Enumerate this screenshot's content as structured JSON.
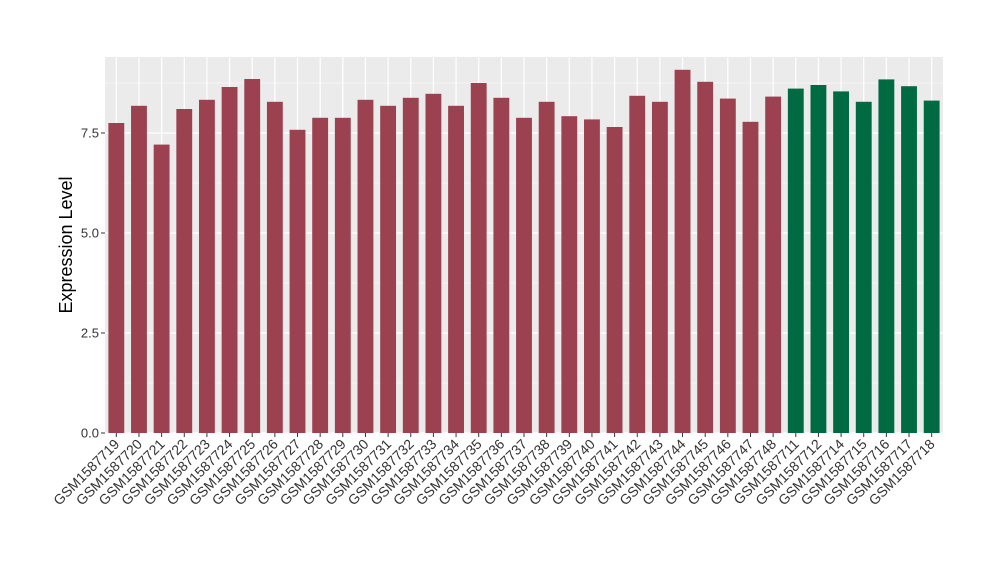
{
  "chart_data": {
    "type": "bar",
    "title": "",
    "xlabel": "",
    "ylabel": "Expression Level",
    "ylim": [
      0,
      9.4
    ],
    "yticks": [
      0.0,
      2.5,
      5.0,
      7.5
    ],
    "ytick_labels": [
      "0.0",
      "2.5",
      "5.0",
      "7.5"
    ],
    "grid": true,
    "legend": "none",
    "categories": [
      "GSM1587719",
      "GSM1587720",
      "GSM1587721",
      "GSM1587722",
      "GSM1587723",
      "GSM1587724",
      "GSM1587725",
      "GSM1587726",
      "GSM1587727",
      "GSM1587728",
      "GSM1587729",
      "GSM1587730",
      "GSM1587731",
      "GSM1587732",
      "GSM1587733",
      "GSM1587734",
      "GSM1587735",
      "GSM1587736",
      "GSM1587737",
      "GSM1587738",
      "GSM1587739",
      "GSM1587740",
      "GSM1587741",
      "GSM1587742",
      "GSM1587743",
      "GSM1587744",
      "GSM1587745",
      "GSM1587746",
      "GSM1587747",
      "GSM1587748",
      "GSM1587711",
      "GSM1587712",
      "GSM1587714",
      "GSM1587715",
      "GSM1587716",
      "GSM1587717",
      "GSM1587718"
    ],
    "values": [
      7.75,
      8.18,
      7.21,
      8.1,
      8.33,
      8.65,
      8.85,
      8.28,
      7.58,
      7.88,
      7.88,
      8.33,
      8.18,
      8.38,
      8.48,
      8.18,
      8.75,
      8.38,
      7.88,
      8.28,
      7.92,
      7.84,
      7.65,
      8.43,
      8.28,
      9.08,
      8.78,
      8.36,
      7.78,
      8.41,
      8.61,
      8.7,
      8.54,
      8.28,
      8.84,
      8.67,
      8.31
    ],
    "group_colors": [
      "#9b4150",
      "#9b4150",
      "#9b4150",
      "#9b4150",
      "#9b4150",
      "#9b4150",
      "#9b4150",
      "#9b4150",
      "#9b4150",
      "#9b4150",
      "#9b4150",
      "#9b4150",
      "#9b4150",
      "#9b4150",
      "#9b4150",
      "#9b4150",
      "#9b4150",
      "#9b4150",
      "#9b4150",
      "#9b4150",
      "#9b4150",
      "#9b4150",
      "#9b4150",
      "#9b4150",
      "#9b4150",
      "#9b4150",
      "#9b4150",
      "#9b4150",
      "#9b4150",
      "#9b4150",
      "#006b43",
      "#006b43",
      "#006b43",
      "#006b43",
      "#006b43",
      "#006b43",
      "#006b43"
    ],
    "panel_background": "#ebebeb",
    "grid_color": "#ffffff"
  }
}
